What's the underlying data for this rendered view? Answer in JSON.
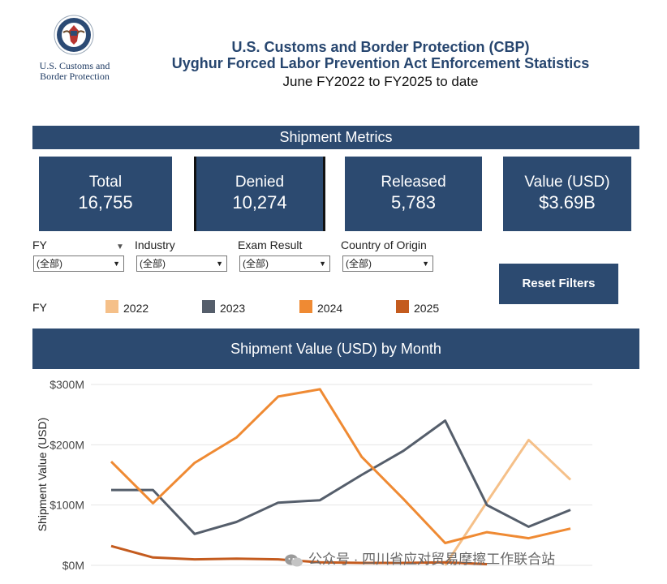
{
  "header": {
    "logo_line1": "U.S. Customs and",
    "logo_line2": "Border Protection",
    "title_line1": "U.S. Customs and Border Protection (CBP)",
    "title_line2": "Uyghur Forced Labor Prevention Act Enforcement Statistics",
    "title_line3": "June FY2022 to FY2025 to date"
  },
  "metrics": {
    "banner": "Shipment Metrics",
    "cards": [
      {
        "label": "Total",
        "value": "16,755"
      },
      {
        "label": "Denied",
        "value": "10,274"
      },
      {
        "label": "Released",
        "value": "5,783"
      },
      {
        "label": "Value (USD)",
        "value": "$3.69B"
      }
    ]
  },
  "filters": {
    "fy_label": "FY",
    "industry_label": "Industry",
    "exam_label": "Exam Result",
    "country_label": "Country of Origin",
    "all_value": "(全部)",
    "reset_label": "Reset Filters"
  },
  "legend": {
    "title": "FY",
    "items": [
      {
        "label": "2022",
        "color": "#f5c089"
      },
      {
        "label": "2023",
        "color": "#555e6b"
      },
      {
        "label": "2024",
        "color": "#ef8a33"
      },
      {
        "label": "2025",
        "color": "#c45b1e"
      }
    ]
  },
  "chart_banner": "Shipment Value (USD) by Month",
  "chart_data": {
    "type": "line",
    "title": "Shipment Value (USD) by Month",
    "ylabel": "Shipment Value (USD)",
    "xlabel": "",
    "ylim": [
      0,
      300
    ],
    "y_unit": "$M",
    "yticks": [
      "$0M",
      "$100M",
      "$200M",
      "$300M"
    ],
    "x": [
      1,
      2,
      3,
      4,
      5,
      6,
      7,
      8,
      9,
      10,
      11,
      12
    ],
    "series": [
      {
        "name": "2022",
        "color": "#f5c089",
        "start_index": 8,
        "values": [
          null,
          null,
          null,
          null,
          null,
          null,
          null,
          null,
          0,
          105,
          208,
          142
        ]
      },
      {
        "name": "2023",
        "color": "#555e6b",
        "start_index": 0,
        "values": [
          125,
          125,
          52,
          72,
          104,
          108,
          150,
          190,
          240,
          100,
          64,
          92
        ]
      },
      {
        "name": "2024",
        "color": "#ef8a33",
        "start_index": 0,
        "values": [
          172,
          103,
          170,
          212,
          280,
          292,
          180,
          110,
          37,
          55,
          45,
          61
        ]
      },
      {
        "name": "2025",
        "color": "#c45b1e",
        "start_index": 0,
        "values": [
          32,
          13,
          10,
          11,
          10,
          5,
          4,
          4,
          5,
          2,
          null,
          null
        ]
      }
    ]
  },
  "watermark": "公众号 · 四川省应对贸易摩擦工作联合站"
}
